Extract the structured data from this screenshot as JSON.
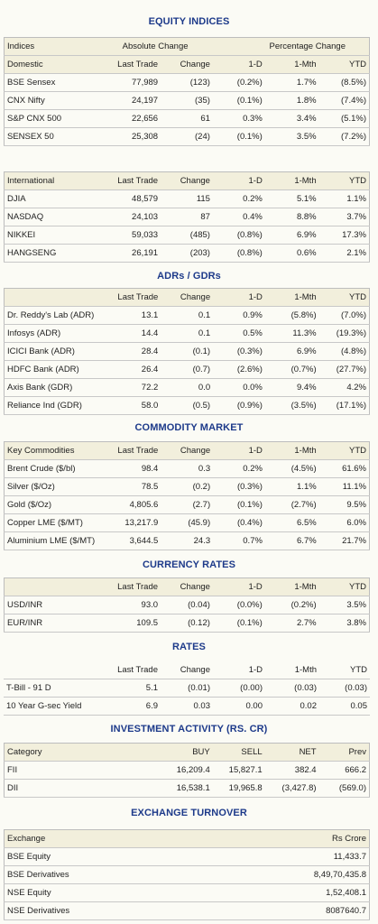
{
  "sections": {
    "equity": {
      "title": "EQUITY INDICES",
      "domestic": {
        "top_header": [
          "Indices",
          "Absolute Change",
          "Percentage Change"
        ],
        "header": [
          "Domestic",
          "Last Trade",
          "Change",
          "1-D",
          "1-Mth",
          "YTD"
        ],
        "rows": [
          [
            "BSE Sensex",
            "77,989",
            "(123)",
            "(0.2%)",
            "1.7%",
            "(8.5%)"
          ],
          [
            "CNX Nifty",
            "24,197",
            "(35)",
            "(0.1%)",
            "1.8%",
            "(7.4%)"
          ],
          [
            "S&P CNX 500",
            "22,656",
            "61",
            "0.3%",
            "3.4%",
            "(5.1%)"
          ],
          [
            "SENSEX 50",
            "25,308",
            "(24)",
            "(0.1%)",
            "3.5%",
            "(7.2%)"
          ]
        ]
      },
      "international": {
        "header": [
          "International",
          "Last Trade",
          "Change",
          "1-D",
          "1-Mth",
          "YTD"
        ],
        "rows": [
          [
            "DJIA",
            "48,579",
            "115",
            "0.2%",
            "5.1%",
            "1.1%"
          ],
          [
            "NASDAQ",
            "24,103",
            "87",
            "0.4%",
            "8.8%",
            "3.7%"
          ],
          [
            "NIKKEI",
            "59,033",
            "(485)",
            "(0.8%)",
            "6.9%",
            "17.3%"
          ],
          [
            "HANGSENG",
            "26,191",
            "(203)",
            "(0.8%)",
            "0.6%",
            "2.1%"
          ]
        ]
      }
    },
    "adr": {
      "title": "ADRs / GDRs",
      "header": [
        "",
        "Last Trade",
        "Change",
        "1-D",
        "1-Mth",
        "YTD"
      ],
      "rows": [
        [
          "Dr. Reddy's Lab (ADR)",
          "13.1",
          "0.1",
          "0.9%",
          "(5.8%)",
          "(7.0%)"
        ],
        [
          "Infosys (ADR)",
          "14.4",
          "0.1",
          "0.5%",
          "11.3%",
          "(19.3%)"
        ],
        [
          "ICICI Bank (ADR)",
          "28.4",
          "(0.1)",
          "(0.3%)",
          "6.9%",
          "(4.8%)"
        ],
        [
          "HDFC Bank (ADR)",
          "26.4",
          "(0.7)",
          "(2.6%)",
          "(0.7%)",
          "(27.7%)"
        ],
        [
          "Axis Bank (GDR)",
          "72.2",
          "0.0",
          "0.0%",
          "9.4%",
          "4.2%"
        ],
        [
          "Reliance Ind (GDR)",
          "58.0",
          "(0.5)",
          "(0.9%)",
          "(3.5%)",
          "(17.1%)"
        ]
      ]
    },
    "commodity": {
      "title": "COMMODITY MARKET",
      "header": [
        "Key Commodities",
        "Last Trade",
        "Change",
        "1-D",
        "1-Mth",
        "YTD"
      ],
      "rows": [
        [
          "Brent Crude ($/bl)",
          "98.4",
          "0.3",
          "0.2%",
          "(4.5%)",
          "61.6%"
        ],
        [
          "Silver ($/Oz)",
          "78.5",
          "(0.2)",
          "(0.3%)",
          "1.1%",
          "11.1%"
        ],
        [
          "Gold ($/Oz)",
          "4,805.6",
          "(2.7)",
          "(0.1%)",
          "(2.7%)",
          "9.5%"
        ],
        [
          "Copper LME ($/MT)",
          "13,217.9",
          "(45.9)",
          "(0.4%)",
          "6.5%",
          "6.0%"
        ],
        [
          "Aluminium LME ($/MT)",
          "3,644.5",
          "24.3",
          "0.7%",
          "6.7%",
          "21.7%"
        ]
      ]
    },
    "currency": {
      "title": "CURRENCY RATES",
      "header": [
        "",
        "Last Trade",
        "Change",
        "1-D",
        "1-Mth",
        "YTD"
      ],
      "rows": [
        [
          "USD/INR",
          "93.0",
          "(0.04)",
          "(0.0%)",
          "(0.2%)",
          "3.5%"
        ],
        [
          "EUR/INR",
          "109.5",
          "(0.12)",
          "(0.1%)",
          "2.7%",
          "3.8%"
        ]
      ]
    },
    "rates": {
      "title": "RATES",
      "header": [
        "",
        "Last Trade",
        "Change",
        "1-D",
        "1-Mth",
        "YTD"
      ],
      "rows": [
        [
          "T-Bill - 91 D",
          "5.1",
          "(0.01)",
          "(0.00)",
          "(0.03)",
          "(0.03)"
        ],
        [
          "10 Year G-sec Yield",
          "6.9",
          "0.03",
          "0.00",
          "0.02",
          "0.05"
        ]
      ]
    },
    "investment": {
      "title": "INVESTMENT ACTIVITY (RS. CR)",
      "header": [
        "Category",
        "BUY",
        "SELL",
        "NET",
        "Prev"
      ],
      "rows": [
        [
          "FII",
          "16,209.4",
          "15,827.1",
          "382.4",
          "666.2"
        ],
        [
          "DII",
          "16,538.1",
          "19,965.8",
          "(3,427.8)",
          "(569.0)"
        ]
      ]
    },
    "turnover": {
      "title": "EXCHANGE TURNOVER",
      "header": [
        "Exchange",
        "Rs Crore"
      ],
      "rows": [
        [
          "BSE Equity",
          "11,433.7"
        ],
        [
          "BSE Derivatives",
          "8,49,70,435.8"
        ],
        [
          "NSE Equity",
          "1,52,408.1"
        ],
        [
          "NSE Derivatives",
          "8087640.7"
        ]
      ]
    }
  }
}
